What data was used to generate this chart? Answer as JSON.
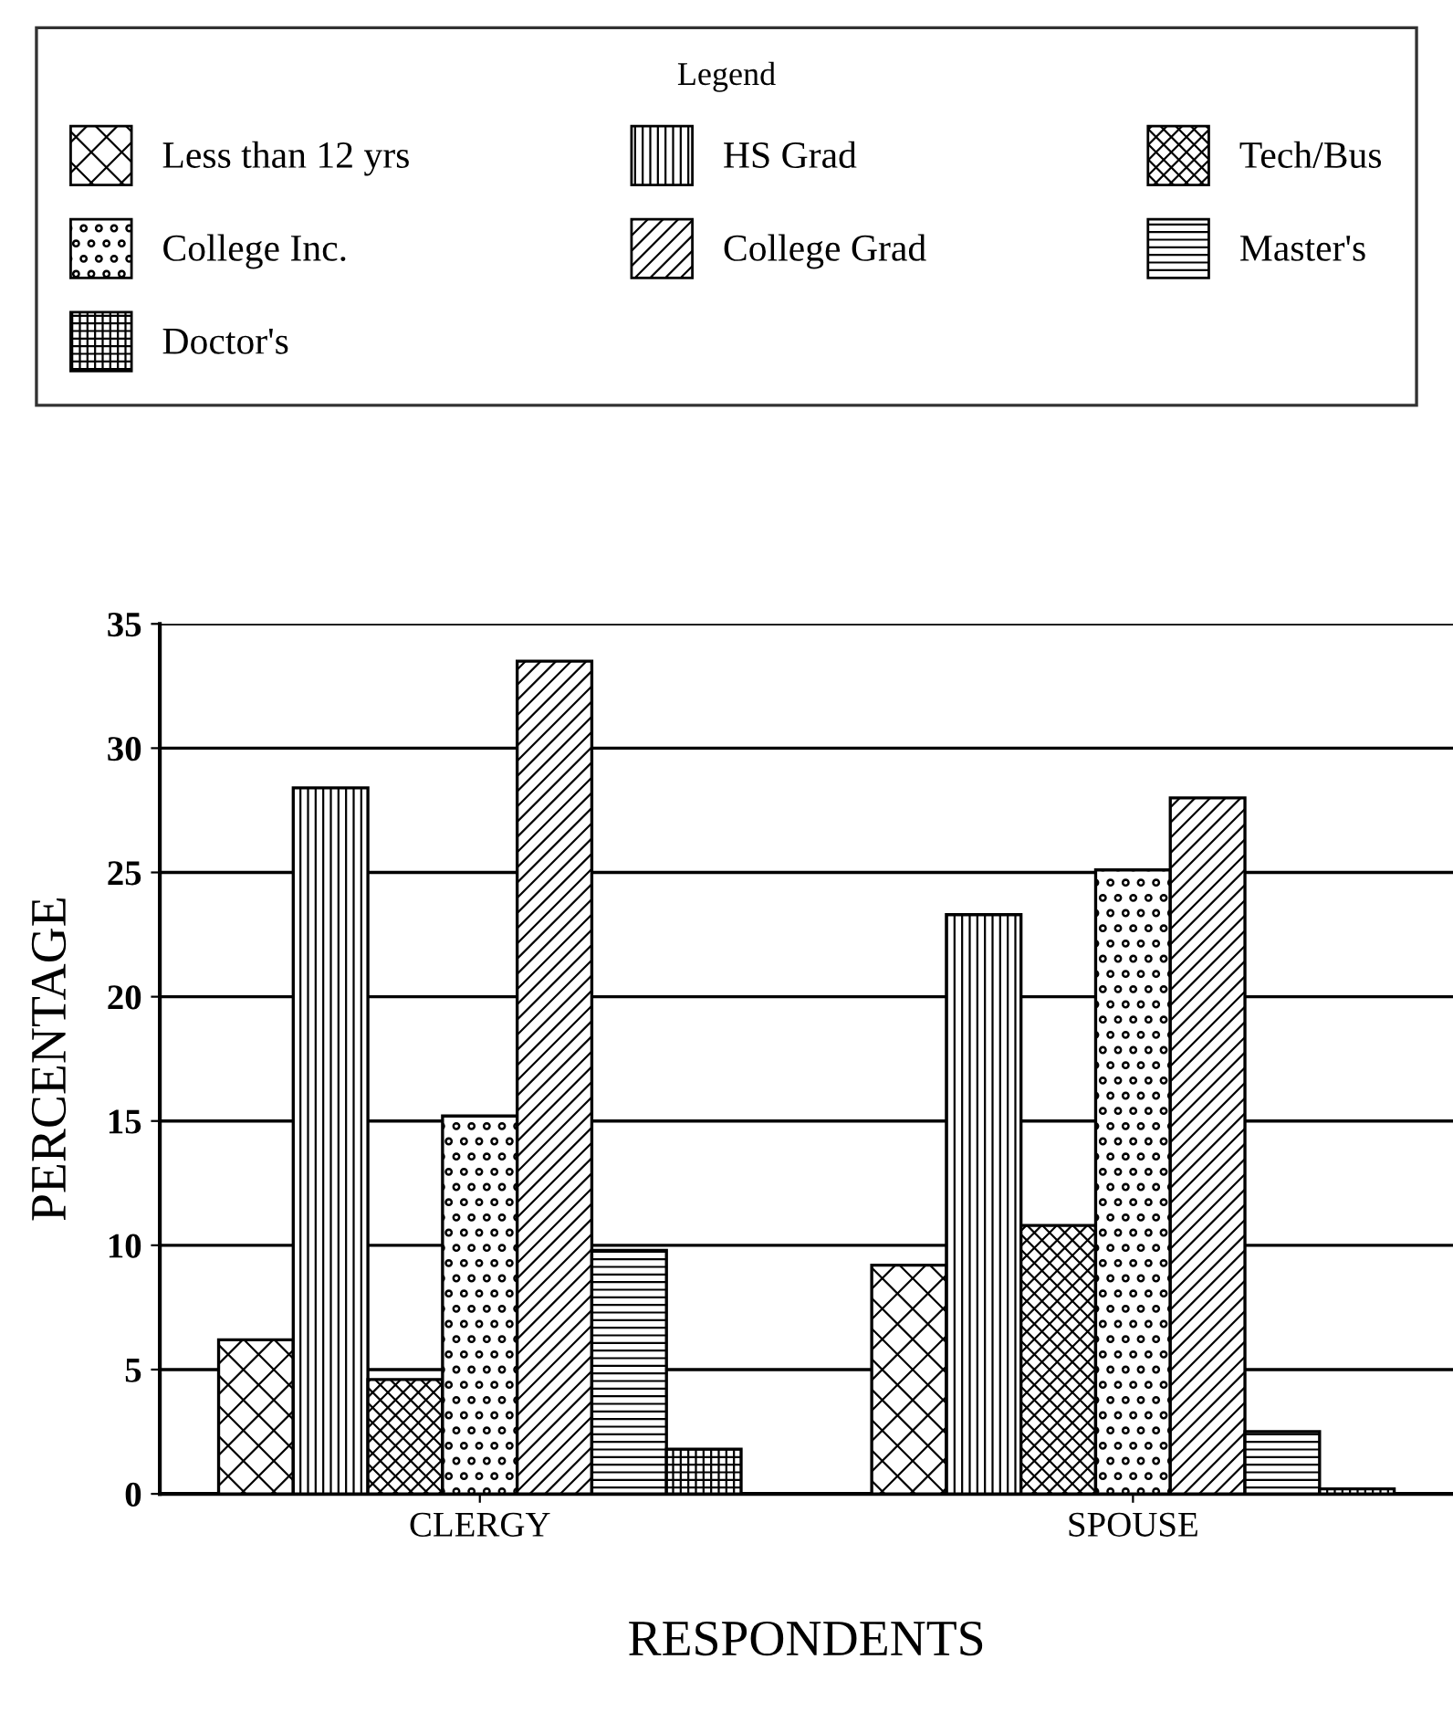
{
  "chart_data": {
    "type": "bar",
    "legend_title": "Legend",
    "xlabel": "RESPONDENTS",
    "ylabel": "PERCENTAGE",
    "categories": [
      "CLERGY",
      "SPOUSE"
    ],
    "series": [
      {
        "name": "Less than 12 yrs",
        "color": "#000000",
        "values": [
          6.2,
          9.2
        ]
      },
      {
        "name": "HS Grad",
        "color": "#000000",
        "values": [
          28.4,
          23.3
        ]
      },
      {
        "name": "Tech/Bus",
        "color": "#000000",
        "values": [
          4.6,
          10.8
        ]
      },
      {
        "name": "College Inc.",
        "color": "#000000",
        "values": [
          15.2,
          25.1
        ]
      },
      {
        "name": "College Grad",
        "color": "#000000",
        "values": [
          33.5,
          28.0
        ]
      },
      {
        "name": "Master's",
        "color": "#000000",
        "values": [
          9.8,
          2.5
        ]
      },
      {
        "name": "Doctor's",
        "color": "#000000",
        "values": [
          1.8,
          0.2
        ]
      }
    ],
    "ylim": [
      0,
      35
    ],
    "yticks": [
      0,
      5,
      10,
      15,
      20,
      25,
      30,
      35
    ],
    "grid": "y",
    "legend": "top"
  }
}
